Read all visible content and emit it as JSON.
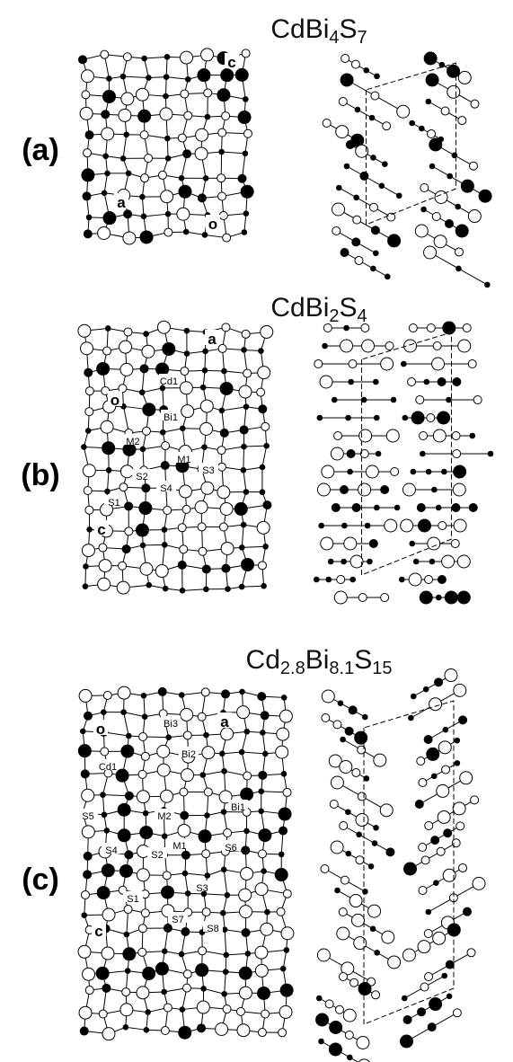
{
  "panels": [
    {
      "label": "(a)",
      "formula": [
        "CdBi",
        "4",
        "S",
        "7"
      ],
      "atom_labels": [
        "c",
        "a",
        "o"
      ]
    },
    {
      "label": "(b)",
      "formula": [
        "CdBi",
        "2",
        "S",
        "4"
      ],
      "atom_labels": [
        "a",
        "Cd1",
        "o",
        "Bi1",
        "M2",
        "M1",
        "S3",
        "S2",
        "S4",
        "S1",
        "c"
      ]
    },
    {
      "label": "(c)",
      "formula": [
        "Cd",
        "2.8",
        "Bi",
        "8.1",
        "S",
        "15"
      ],
      "atom_labels": [
        "o",
        "Bi3",
        "a",
        "Bi2",
        "Cd1",
        "Bi1",
        "S5",
        "M2",
        "M1",
        "S6",
        "S4",
        "S2",
        "S3",
        "S1",
        "S7",
        "c",
        "S8"
      ]
    }
  ]
}
